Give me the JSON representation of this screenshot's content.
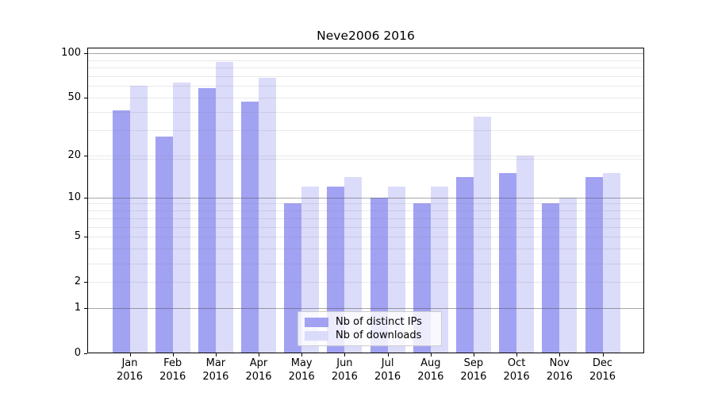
{
  "title": "Neve2006 2016",
  "legend": {
    "position": "lower center",
    "items": [
      {
        "label": "Nb of distinct IPs",
        "color": "#a2a2f3"
      },
      {
        "label": "Nb of downloads",
        "color": "#dbdbfa"
      }
    ]
  },
  "chart_data": {
    "type": "bar",
    "title": "Neve2006 2016",
    "categories": [
      "Jan",
      "Feb",
      "Mar",
      "Apr",
      "May",
      "Jun",
      "Jul",
      "Aug",
      "Sep",
      "Oct",
      "Nov",
      "Dec"
    ],
    "category_year": "2016",
    "series": [
      {
        "name": "Nb of distinct IPs",
        "color": "#a2a2f3",
        "values": [
          41,
          27,
          58,
          47,
          9,
          12,
          10,
          9,
          14,
          15,
          9,
          14
        ]
      },
      {
        "name": "Nb of downloads",
        "color": "#dbdbfa",
        "values": [
          60,
          63,
          87,
          68,
          12,
          14,
          12,
          12,
          37,
          20,
          10,
          15
        ]
      }
    ],
    "xlabel": "",
    "ylabel": "",
    "yscale": "log1p",
    "ylim": [
      0,
      109
    ],
    "yticks": [
      0,
      1,
      2,
      5,
      10,
      20,
      50,
      100
    ],
    "ytick_major": [
      1,
      10,
      100
    ],
    "ytick_minor": [
      3,
      4,
      6,
      7,
      8,
      9,
      19,
      30,
      40,
      60,
      70,
      80,
      90
    ],
    "grid": "on",
    "major_grid_color": "#a8a8a8",
    "minor_grid_color": "#e9e9e9",
    "legend_position": "lower center"
  }
}
